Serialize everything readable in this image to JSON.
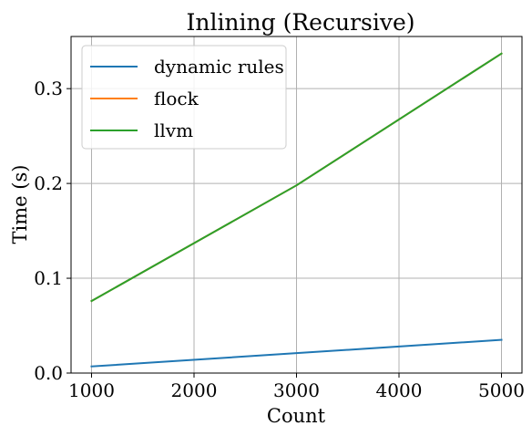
{
  "chart_data": {
    "type": "line",
    "title": "Inlining (Recursive)",
    "xlabel": "Count",
    "ylabel": "Time (s)",
    "xlim": [
      800,
      5200
    ],
    "ylim": [
      0,
      0.355
    ],
    "xticks": [
      1000,
      2000,
      3000,
      4000,
      5000
    ],
    "xtick_labels": [
      "1000",
      "2000",
      "3000",
      "4000",
      "5000"
    ],
    "yticks": [
      0,
      0.1,
      0.2,
      0.3
    ],
    "ytick_labels": [
      "0.0",
      "0.1",
      "0.2",
      "0.3"
    ],
    "grid": true,
    "legend_position": "top-left",
    "x": [
      1000,
      3000,
      5000
    ],
    "series": [
      {
        "name": "dynamic rules",
        "color": "#1f77b4",
        "values": [
          0.007,
          0.021,
          0.035
        ]
      },
      {
        "name": "flock",
        "color": "#ff7f0e",
        "values": [
          0.076,
          0.198,
          0.337
        ]
      },
      {
        "name": "llvm",
        "color": "#2ca02c",
        "values": [
          0.076,
          0.198,
          0.337
        ]
      }
    ]
  }
}
